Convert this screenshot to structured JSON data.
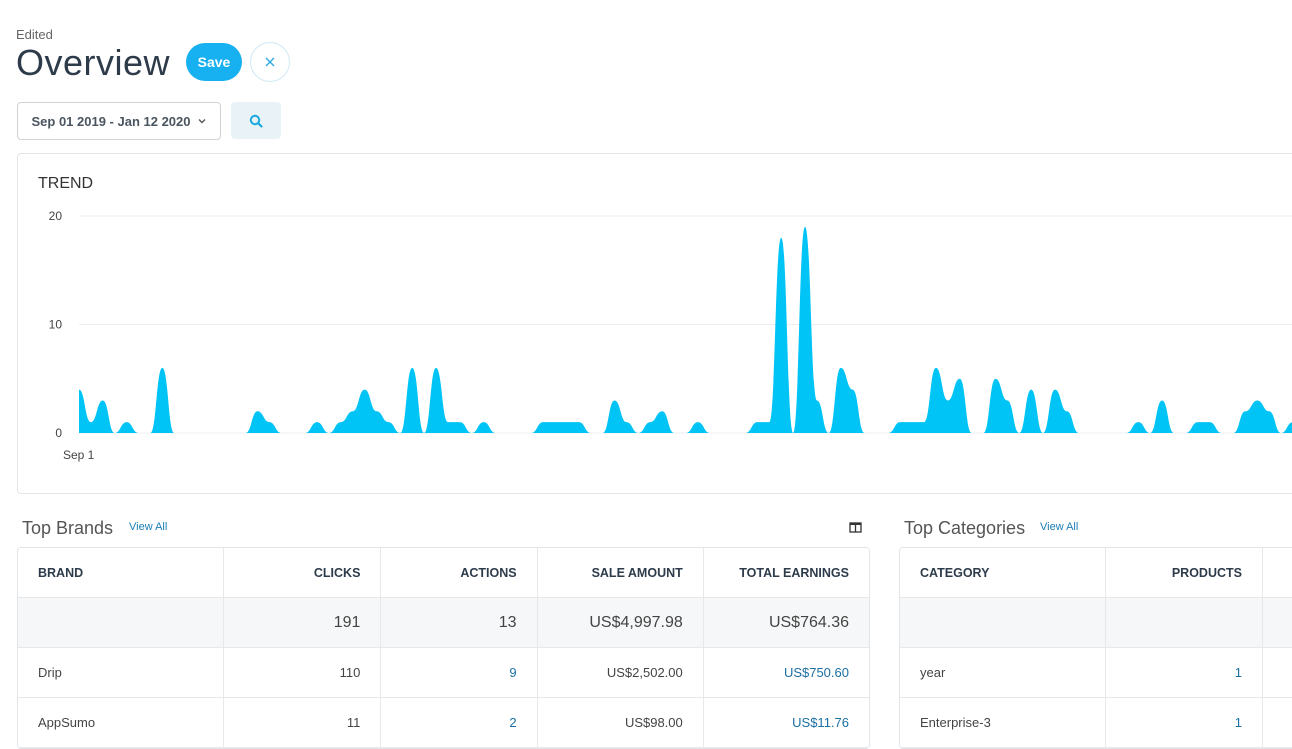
{
  "header": {
    "status": "Edited",
    "title": "Overview",
    "save_label": "Save",
    "close_icon": "close-icon"
  },
  "filters": {
    "date_range": "Sep 01 2019 - Jan 12 2020",
    "search_icon": "search-icon"
  },
  "trend": {
    "title": "TREND",
    "chart_data": {
      "type": "area",
      "title": "TREND",
      "x_start_label": "Sep 1",
      "ylim": [
        0,
        20
      ],
      "yticks": [
        0,
        10,
        20
      ],
      "grid": true,
      "color": "#00c4f5",
      "series": [
        {
          "values": [
            4,
            1,
            3,
            0,
            1,
            0,
            0,
            6,
            0,
            0,
            0,
            0,
            0,
            0,
            0,
            2,
            1,
            0,
            0,
            0,
            1,
            0,
            1,
            2,
            4,
            2,
            1,
            0,
            6,
            0,
            6,
            1,
            1,
            0,
            1,
            0,
            0,
            0,
            0,
            1,
            1,
            1,
            1,
            0,
            0,
            3,
            1,
            0,
            1,
            2,
            0,
            0,
            1,
            0,
            0,
            0,
            0,
            1,
            1,
            18,
            0,
            19,
            3,
            0,
            6,
            4,
            0,
            0,
            0,
            1,
            1,
            1,
            6,
            3,
            5,
            0,
            0,
            5,
            3,
            0,
            4,
            0,
            4,
            2,
            0,
            0,
            0,
            0,
            0,
            1,
            0,
            3,
            0,
            0,
            1,
            1,
            0,
            0,
            2,
            3,
            2,
            0,
            1
          ]
        }
      ]
    }
  },
  "brands": {
    "title": "Top Brands",
    "view_all": "View All",
    "columns_icon": "columns-icon",
    "headers": [
      "BRAND",
      "CLICKS",
      "ACTIONS",
      "SALE AMOUNT",
      "TOTAL EARNINGS"
    ],
    "totals": [
      "",
      "191",
      "13",
      "US$4,997.98",
      "US$764.36"
    ],
    "rows": [
      [
        "Drip",
        "110",
        "9",
        "US$2,502.00",
        "US$750.60"
      ],
      [
        "AppSumo",
        "11",
        "2",
        "US$98.00",
        "US$11.76"
      ]
    ]
  },
  "categories": {
    "title": "Top Categories",
    "view_all": "View All",
    "headers": [
      "CATEGORY",
      "PRODUCTS"
    ],
    "totals": [
      "",
      ""
    ],
    "rows": [
      [
        "year",
        "1"
      ],
      [
        "Enterprise-3",
        "1"
      ]
    ]
  }
}
